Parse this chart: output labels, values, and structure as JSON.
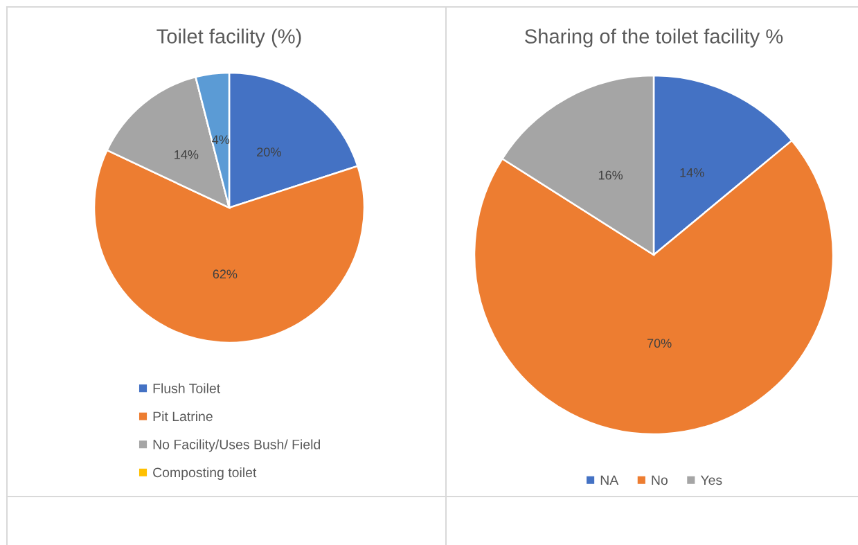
{
  "chart_data": [
    {
      "type": "pie",
      "title": "Toilet facility (%)",
      "categories": [
        "Flush Toilet",
        "Pit Latrine",
        "No Facility/Uses Bush/ Field",
        "Composting toilet",
        null
      ],
      "values": [
        20,
        62,
        14,
        0,
        4
      ],
      "colors": [
        "#4472c4",
        "#ed7d31",
        "#a5a5a5",
        "#ffc000",
        "#5b9bd5"
      ],
      "value_labels": [
        "20%",
        "62%",
        "14%",
        null,
        "4%"
      ],
      "legend": "bottom"
    },
    {
      "type": "pie",
      "title": "Sharing of the toilet facility %",
      "categories": [
        "NA",
        "No",
        "Yes"
      ],
      "values": [
        14,
        70,
        16
      ],
      "colors": [
        "#4472c4",
        "#ed7d31",
        "#a5a5a5"
      ],
      "value_labels": [
        "14%",
        "70%",
        "16%"
      ],
      "legend": "bottom"
    }
  ]
}
